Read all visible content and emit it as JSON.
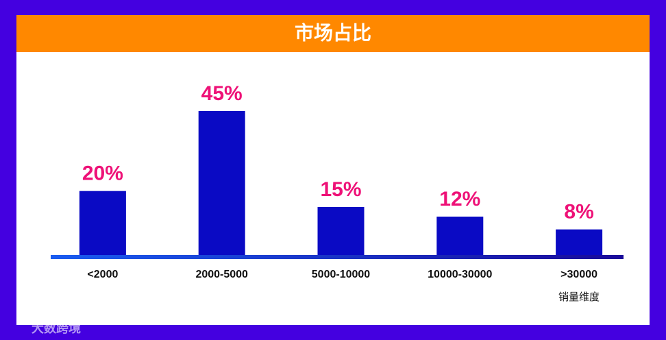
{
  "chart_data": {
    "type": "bar",
    "title": "市场占比",
    "categories": [
      "<2000",
      "2000-5000",
      "5000-10000",
      "10000-30000",
      ">30000"
    ],
    "values": [
      20,
      45,
      15,
      12,
      8
    ],
    "value_labels": [
      "20%",
      "45%",
      "15%",
      "12%",
      "8%"
    ],
    "color": "#0a0ac4",
    "x_label": "销量维度",
    "grid": false
  },
  "watermark": "大数跨境"
}
